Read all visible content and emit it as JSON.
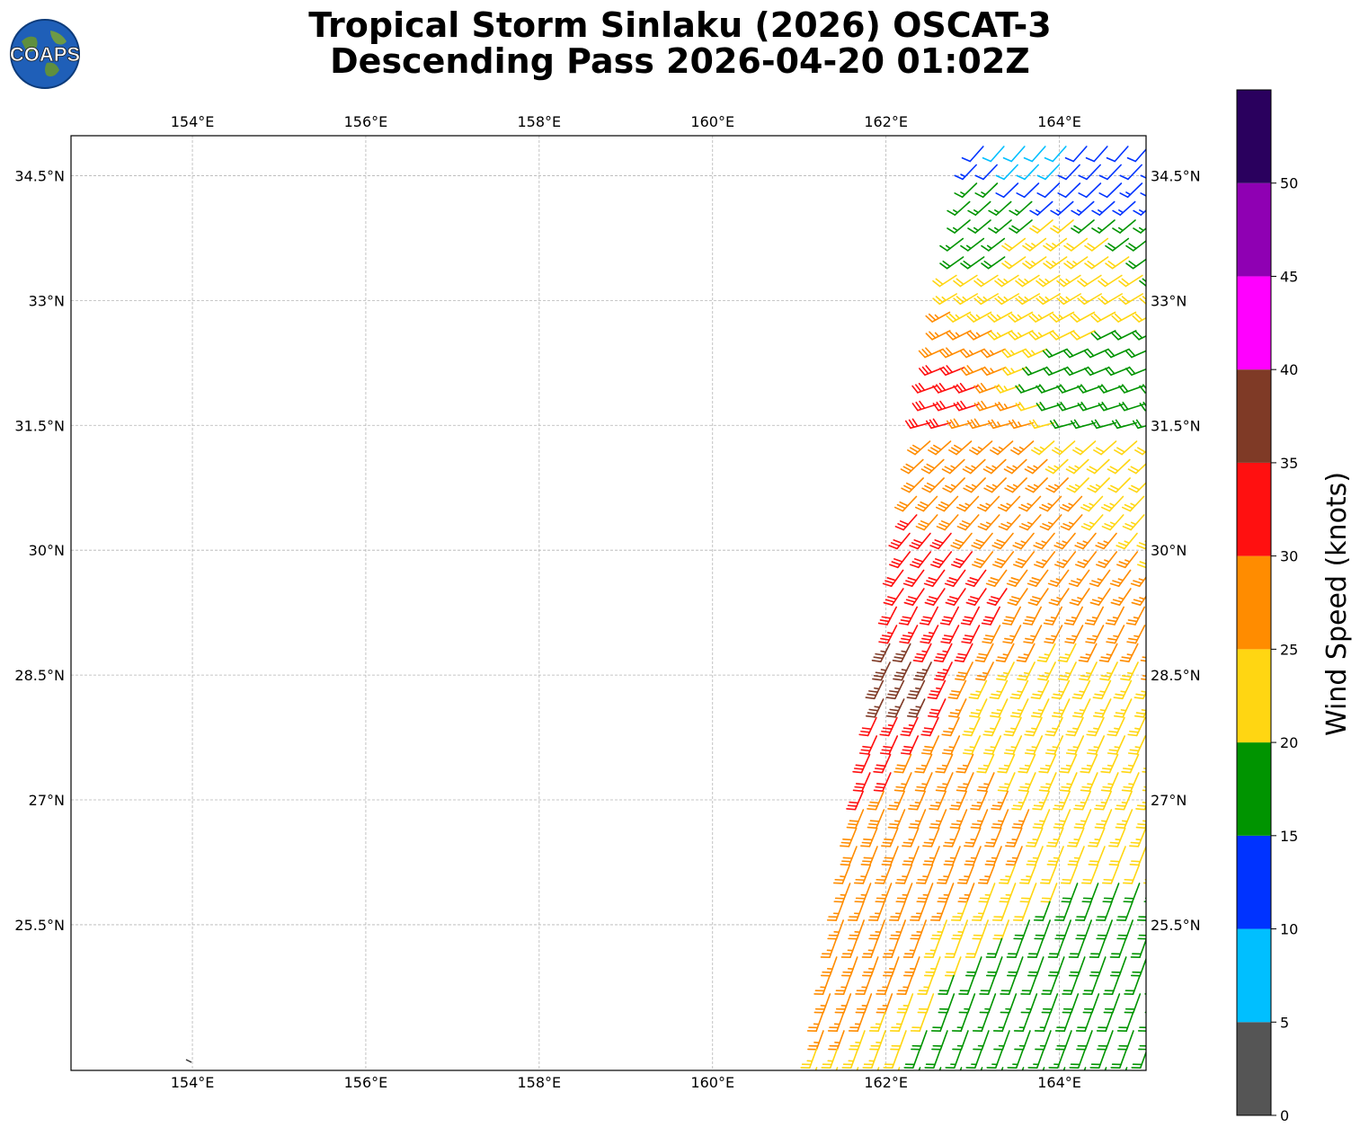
{
  "title": {
    "line1": "Tropical Storm Sinlaku (2026) OSCAT-3",
    "line2": "Descending Pass 2026-04-20 01:02Z"
  },
  "logo": {
    "text": "COAPS",
    "icon": "globe-logo-icon"
  },
  "map": {
    "lon_ticks": [
      "154°E",
      "156°E",
      "158°E",
      "160°E",
      "162°E",
      "164°E"
    ],
    "lat_ticks": [
      "34.5°N",
      "33°N",
      "31.5°N",
      "30°N",
      "28.5°N",
      "27°N",
      "25.5°N"
    ],
    "lon_range": [
      152.6,
      165.0
    ],
    "lat_range": [
      23.75,
      34.98
    ],
    "grid": true
  },
  "colorbar": {
    "label": "Wind Speed (knots)",
    "ticks": [
      "0",
      "5",
      "10",
      "15",
      "20",
      "25",
      "30",
      "35",
      "40",
      "45",
      "50"
    ],
    "bins": [
      {
        "min": 0,
        "max": 5,
        "color": "#555555"
      },
      {
        "min": 5,
        "max": 10,
        "color": "#00bfff"
      },
      {
        "min": 10,
        "max": 15,
        "color": "#0033ff"
      },
      {
        "min": 15,
        "max": 20,
        "color": "#009400"
      },
      {
        "min": 20,
        "max": 25,
        "color": "#ffd612"
      },
      {
        "min": 25,
        "max": 30,
        "color": "#ff8c00"
      },
      {
        "min": 30,
        "max": 35,
        "color": "#ff1010"
      },
      {
        "min": 35,
        "max": 40,
        "color": "#7f3a26"
      },
      {
        "min": 40,
        "max": 45,
        "color": "#ff00ff"
      },
      {
        "min": 45,
        "max": 50,
        "color": "#8f00b3"
      },
      {
        "min": 50,
        "max": 55,
        "color": "#2a005e"
      }
    ]
  },
  "chart_data": {
    "type": "scatter",
    "title": "Tropical Storm Sinlaku (2026) OSCAT-3 Descending Pass 2026-04-20 01:02Z",
    "xlabel": "",
    "ylabel": "",
    "xlim": [
      152.6,
      165.0
    ],
    "ylim": [
      23.75,
      34.98
    ],
    "swath": {
      "wind_unit": "knots",
      "approx_regions": [
        {
          "lon": 163.8,
          "lat": 34.8,
          "speed": 8
        },
        {
          "lon": 164.3,
          "lat": 34.6,
          "speed": 12
        },
        {
          "lon": 163.2,
          "lat": 34.0,
          "speed": 17
        },
        {
          "lon": 164.0,
          "lat": 33.6,
          "speed": 23
        },
        {
          "lon": 163.5,
          "lat": 32.7,
          "speed": 25
        },
        {
          "lon": 162.8,
          "lat": 31.9,
          "speed": 31
        },
        {
          "lon": 163.4,
          "lat": 31.2,
          "speed": 27
        },
        {
          "lon": 164.2,
          "lat": 32.0,
          "speed": 18
        },
        {
          "lon": 162.3,
          "lat": 29.5,
          "speed": 32
        },
        {
          "lon": 162.1,
          "lat": 28.5,
          "speed": 37
        },
        {
          "lon": 161.9,
          "lat": 27.6,
          "speed": 31
        },
        {
          "lon": 162.5,
          "lat": 27.2,
          "speed": 27
        },
        {
          "lon": 163.5,
          "lat": 28.0,
          "speed": 23
        },
        {
          "lon": 161.7,
          "lat": 25.3,
          "speed": 26
        },
        {
          "lon": 164.4,
          "lat": 24.8,
          "speed": 18
        },
        {
          "lon": 163.4,
          "lat": 24.2,
          "speed": 17
        }
      ]
    }
  }
}
